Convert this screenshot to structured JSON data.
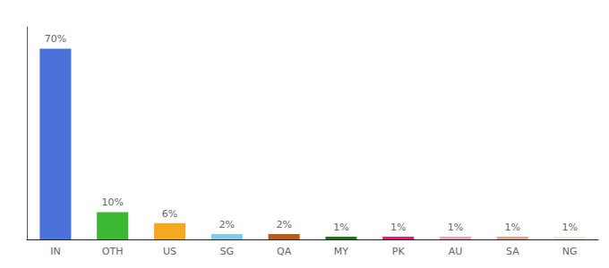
{
  "chart_data": {
    "type": "bar",
    "categories": [
      "IN",
      "OTH",
      "US",
      "SG",
      "QA",
      "MY",
      "PK",
      "AU",
      "SA",
      "NG"
    ],
    "values": [
      70,
      10,
      6,
      2,
      2,
      1,
      1,
      1,
      1,
      1
    ],
    "value_labels": [
      "70%",
      "10%",
      "6%",
      "2%",
      "2%",
      "1%",
      "1%",
      "1%",
      "1%",
      "1%"
    ],
    "colors": [
      "#4a72d9",
      "#3cb832",
      "#f5a91e",
      "#82cce8",
      "#b85c1a",
      "#1a7a1a",
      "#e8196e",
      "#f0a0b8",
      "#e8a090",
      "#eeecda"
    ],
    "ylim": [
      0,
      78
    ],
    "yticks": [],
    "grid": false,
    "data_labels": true,
    "tick_labels": "x"
  }
}
